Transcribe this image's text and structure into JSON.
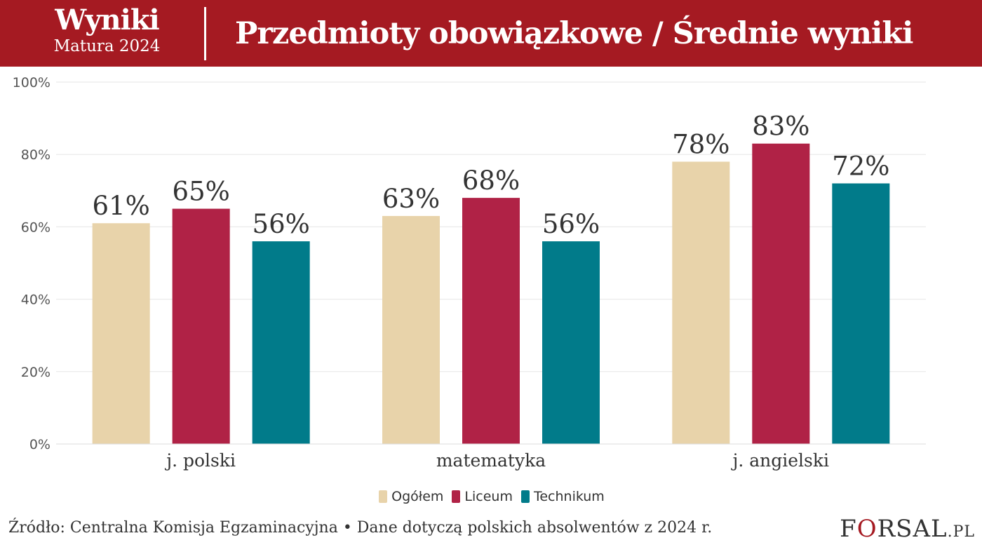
{
  "header": {
    "brand_title": "Wyniki",
    "brand_subtitle": "Matura 2024",
    "title": "Przedmioty obowiązkowe / Średnie wyniki",
    "background_color": "#a51a22"
  },
  "chart_data": {
    "type": "bar",
    "title": "Przedmioty obowiązkowe / Średnie wyniki",
    "xlabel": "",
    "ylabel": "",
    "categories": [
      "j. polski",
      "matematyka",
      "j. angielski"
    ],
    "series": [
      {
        "name": "Ogółem",
        "color": "#e8d3aa",
        "values": [
          61,
          63,
          78
        ]
      },
      {
        "name": "Liceum",
        "color": "#b02246",
        "values": [
          65,
          68,
          83
        ]
      },
      {
        "name": "Technikum",
        "color": "#017b8a",
        "values": [
          56,
          56,
          72
        ]
      }
    ],
    "data_labels": [
      [
        "61%",
        "63%",
        "78%"
      ],
      [
        "65%",
        "68%",
        "83%"
      ],
      [
        "56%",
        "56%",
        "72%"
      ]
    ],
    "ylim": [
      0,
      100
    ],
    "yticks": [
      0,
      20,
      40,
      60,
      80,
      100
    ],
    "ytick_labels": [
      "0%",
      "20%",
      "40%",
      "60%",
      "80%",
      "100%"
    ],
    "grid": true,
    "legend_position": "bottom-center"
  },
  "legend": {
    "items": [
      {
        "label": "Ogółem",
        "color": "#e8d3aa"
      },
      {
        "label": "Liceum",
        "color": "#b02246"
      },
      {
        "label": "Technikum",
        "color": "#017b8a"
      }
    ]
  },
  "footer": {
    "source": "Źródło: Centralna Komisja Egzaminacyjna • Dane dotyczą polskich absolwentów z 2024 r."
  },
  "logo": {
    "f": "F",
    "o": "O",
    "rest": "RSAL",
    "domain": ".PL",
    "accent_color": "#a51a22"
  }
}
